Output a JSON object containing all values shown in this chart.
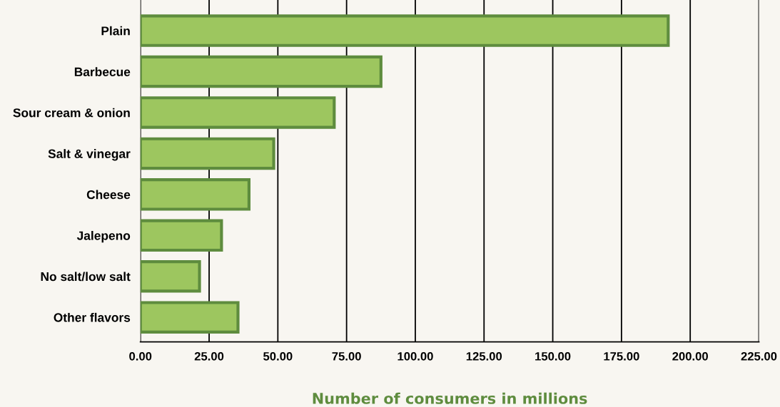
{
  "chart_data": {
    "type": "bar",
    "orientation": "horizontal",
    "xlabel": "Number of consumers in millions",
    "categories": [
      "Plain",
      "Barbecue",
      "Sour cream & onion",
      "Salt & vinegar",
      "Cheese",
      "Jalepeno",
      "No salt/low salt",
      "Other flavors"
    ],
    "values": [
      192,
      87.5,
      70.5,
      48.5,
      39.5,
      29.5,
      21.5,
      35.5
    ],
    "color": "#9dc65f",
    "xlim": [
      0,
      225
    ],
    "xticks": [
      {
        "value": 0,
        "label": "0.00"
      },
      {
        "value": 25,
        "label": "25.00"
      },
      {
        "value": 50,
        "label": "50.00"
      },
      {
        "value": 75,
        "label": "75.00"
      },
      {
        "value": 100,
        "label": "100.00"
      },
      {
        "value": 125,
        "label": "125.00"
      },
      {
        "value": 150,
        "label": "150.00"
      },
      {
        "value": 175,
        "label": "175.00"
      },
      {
        "value": 200,
        "label": "200.00"
      },
      {
        "value": 225,
        "label": "225.00"
      }
    ],
    "grid": "x"
  }
}
